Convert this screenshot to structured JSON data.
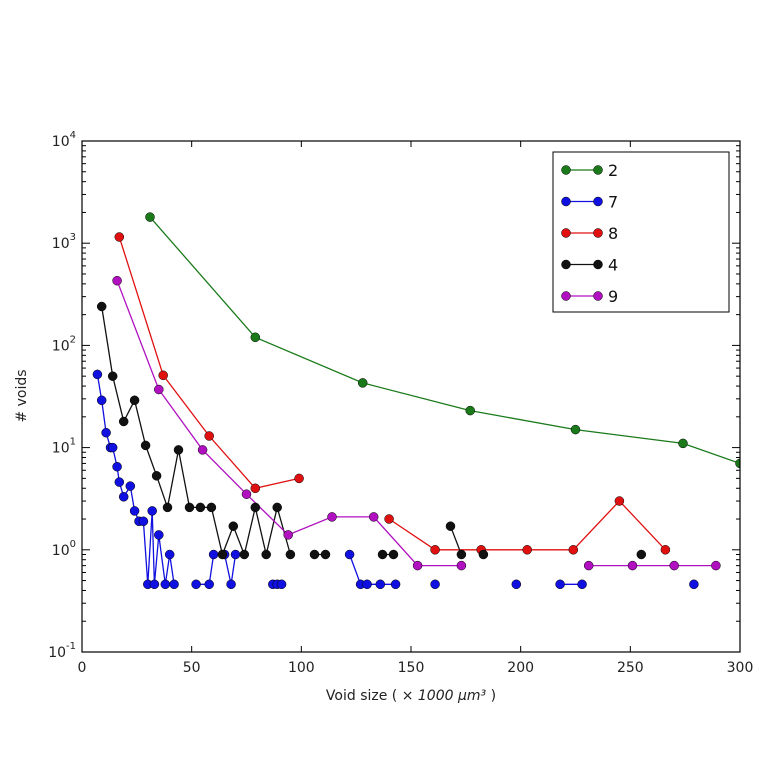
{
  "chart_data": {
    "type": "line",
    "xlabel_text": "Void size ( ",
    "xlabel_unit": "× 1000 μm³",
    "xlabel_close": " )",
    "ylabel": "# voids",
    "xlim": [
      0,
      300
    ],
    "ylim": [
      0.1,
      10000
    ],
    "yscale": "log",
    "x_ticks": [
      0,
      50,
      100,
      150,
      200,
      250,
      300
    ],
    "y_ticks": [
      {
        "value": 0.1,
        "base": "10",
        "exp": "-1"
      },
      {
        "value": 1,
        "base": "10",
        "exp": "0"
      },
      {
        "value": 10,
        "base": "10",
        "exp": "1"
      },
      {
        "value": 100,
        "base": "10",
        "exp": "2"
      },
      {
        "value": 1000,
        "base": "10",
        "exp": "3"
      },
      {
        "value": 10000,
        "base": "10",
        "exp": "4"
      }
    ],
    "legend_position": "top-right",
    "series": [
      {
        "name": "2",
        "color": "#1a7a1a",
        "points": [
          [
            31,
            1800
          ],
          [
            79,
            120
          ],
          [
            128,
            43
          ],
          [
            177,
            23
          ],
          [
            225,
            15
          ],
          [
            274,
            11
          ],
          [
            300,
            7
          ]
        ]
      },
      {
        "name": "7",
        "color": "#1010e0",
        "points": [
          [
            7,
            52
          ],
          [
            9,
            29
          ],
          [
            11,
            14
          ],
          [
            13,
            10
          ],
          [
            14,
            10
          ],
          [
            16,
            6.5
          ],
          [
            17,
            4.6
          ],
          [
            19,
            3.3
          ],
          [
            22,
            4.2
          ],
          [
            24,
            2.4
          ],
          [
            26,
            1.9
          ],
          [
            28,
            1.9
          ],
          [
            30,
            0.46
          ],
          [
            32,
            2.4
          ],
          [
            33,
            0.46
          ],
          [
            35,
            1.4
          ],
          [
            38,
            0.46
          ],
          [
            40,
            0.9
          ],
          [
            42,
            0.46
          ],
          [
            null,
            null
          ],
          [
            52,
            0.46
          ],
          [
            58,
            0.46
          ],
          [
            60,
            0.9
          ],
          [
            65,
            0.9
          ],
          [
            68,
            0.46
          ],
          [
            70,
            0.9
          ],
          [
            null,
            null
          ],
          [
            87,
            0.46
          ],
          [
            89,
            0.46
          ],
          [
            91,
            0.46
          ],
          [
            null,
            null
          ],
          [
            122,
            0.9
          ],
          [
            127,
            0.46
          ],
          [
            130,
            0.46
          ],
          [
            136,
            0.46
          ],
          [
            143,
            0.46
          ],
          [
            null,
            null
          ],
          [
            161,
            0.46
          ],
          [
            null,
            null
          ],
          [
            198,
            0.46
          ],
          [
            null,
            null
          ],
          [
            218,
            0.46
          ],
          [
            228,
            0.46
          ],
          [
            null,
            null
          ],
          [
            279,
            0.46
          ]
        ]
      },
      {
        "name": "8",
        "color": "#e01010",
        "points": [
          [
            17,
            1150
          ],
          [
            37,
            51
          ],
          [
            58,
            13
          ],
          [
            79,
            4
          ],
          [
            99,
            5
          ],
          [
            null,
            null
          ],
          [
            140,
            2
          ],
          [
            161,
            1
          ],
          [
            182,
            1
          ],
          [
            203,
            1
          ],
          [
            224,
            1
          ],
          [
            245,
            3
          ],
          [
            266,
            1
          ]
        ]
      },
      {
        "name": "4",
        "color": "#111111",
        "points": [
          [
            9,
            240
          ],
          [
            14,
            50
          ],
          [
            19,
            18
          ],
          [
            24,
            29
          ],
          [
            29,
            10.5
          ],
          [
            34,
            5.3
          ],
          [
            39,
            2.6
          ],
          [
            44,
            9.5
          ],
          [
            49,
            2.6
          ],
          [
            54,
            2.6
          ],
          [
            59,
            2.6
          ],
          [
            64,
            0.9
          ],
          [
            69,
            1.7
          ],
          [
            74,
            0.9
          ],
          [
            79,
            2.6
          ],
          [
            84,
            0.9
          ],
          [
            89,
            2.6
          ],
          [
            95,
            0.9
          ],
          [
            null,
            null
          ],
          [
            106,
            0.9
          ],
          [
            111,
            0.9
          ],
          [
            null,
            null
          ],
          [
            137,
            0.9
          ],
          [
            142,
            0.9
          ],
          [
            null,
            null
          ],
          [
            168,
            1.7
          ],
          [
            173,
            0.9
          ],
          [
            null,
            null
          ],
          [
            183,
            0.9
          ],
          [
            null,
            null
          ],
          [
            255,
            0.9
          ]
        ]
      },
      {
        "name": "9",
        "color": "#b010c0",
        "points": [
          [
            16,
            430
          ],
          [
            35,
            37
          ],
          [
            55,
            9.5
          ],
          [
            75,
            3.5
          ],
          [
            94,
            1.4
          ],
          [
            114,
            2.1
          ],
          [
            133,
            2.1
          ],
          [
            153,
            0.7
          ],
          [
            173,
            0.7
          ],
          [
            null,
            null
          ],
          [
            231,
            0.7
          ],
          [
            251,
            0.7
          ],
          [
            270,
            0.7
          ],
          [
            289,
            0.7
          ]
        ]
      }
    ]
  }
}
